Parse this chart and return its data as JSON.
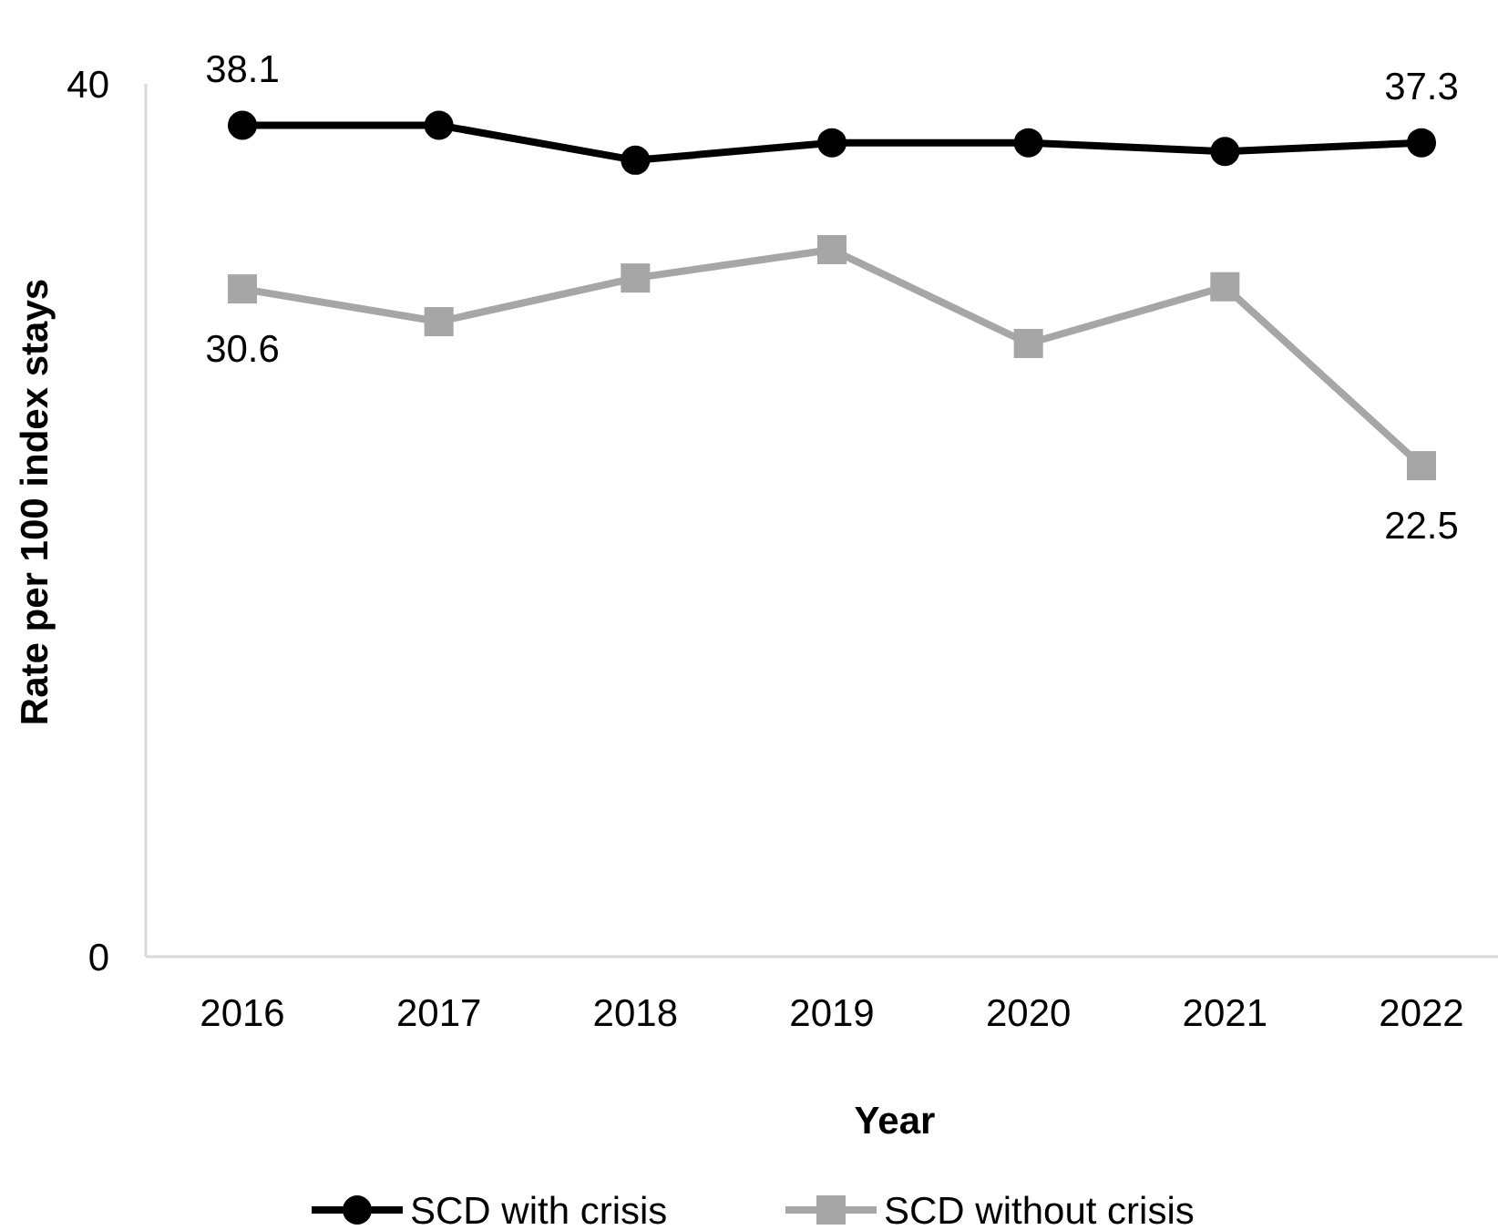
{
  "chart_data": {
    "type": "line",
    "xlabel": "Year",
    "ylabel": "Rate per 100 index stays",
    "categories": [
      "2016",
      "2017",
      "2018",
      "2019",
      "2020",
      "2021",
      "2022"
    ],
    "series": [
      {
        "name": "SCD with crisis",
        "color": "#000000",
        "marker": "circle",
        "values": [
          38.1,
          38.1,
          36.5,
          37.3,
          37.3,
          36.9,
          37.3
        ],
        "value_labels": [
          "38.1",
          null,
          null,
          null,
          null,
          null,
          "37.3"
        ]
      },
      {
        "name": "SCD without crisis",
        "color": "#a6a6a6",
        "marker": "square",
        "values": [
          30.6,
          29.1,
          31.1,
          32.4,
          28.1,
          30.7,
          22.5
        ],
        "value_labels": [
          "30.6",
          null,
          null,
          null,
          null,
          null,
          "22.5"
        ]
      }
    ],
    "ylim": [
      0,
      40
    ],
    "yticks": [
      0,
      40
    ],
    "grid": false,
    "legend": "bottom"
  }
}
